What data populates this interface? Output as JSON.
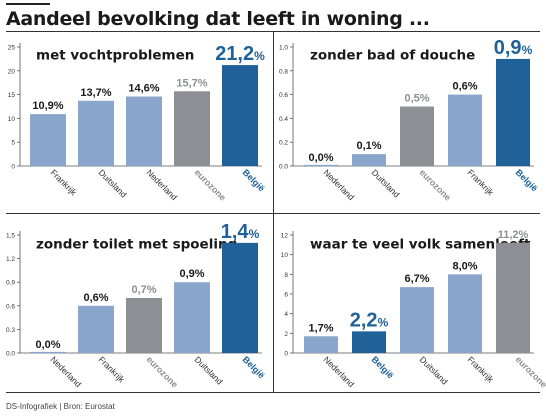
{
  "title": "Aandeel bevolking dat leeft in woning ...",
  "footer": "DS-Infografiek | Bron: Eurostat",
  "colors": {
    "light": "#8aa6cd",
    "gray": "#8d8f94",
    "highlight": "#1f6198",
    "text": "#1a1a1a"
  },
  "chart_data": [
    {
      "type": "bar",
      "title": "met vochtproblemen",
      "categories": [
        "Frankrijk",
        "Duitsland",
        "Nederland",
        "eurozone",
        "België"
      ],
      "values": [
        10.9,
        13.7,
        14.6,
        15.7,
        21.2
      ],
      "labels": [
        "10,9%",
        "13,7%",
        "14,6%",
        "15,7%",
        "21,2%"
      ],
      "styles": [
        "light",
        "light",
        "light",
        "gray",
        "highlight"
      ],
      "ylim": [
        0,
        25
      ],
      "yticks": [
        "0",
        "5",
        "10",
        "15",
        "20",
        "25"
      ],
      "ytick_values": [
        0,
        5,
        10,
        15,
        20,
        25
      ]
    },
    {
      "type": "bar",
      "title": "zonder bad of douche",
      "categories": [
        "Nederland",
        "Duitsland",
        "eurozone",
        "Frankrijk",
        "België"
      ],
      "values": [
        0.0,
        0.1,
        0.5,
        0.6,
        0.9
      ],
      "labels": [
        "0,0%",
        "0,1%",
        "0,5%",
        "0,6%",
        "0,9%"
      ],
      "styles": [
        "light",
        "light",
        "gray",
        "light",
        "highlight"
      ],
      "ylim": [
        0,
        1.0
      ],
      "yticks": [
        "0.0",
        "0.2",
        "0.4",
        "0.6",
        "0.8",
        "1,0"
      ],
      "ytick_values": [
        0,
        0.2,
        0.4,
        0.6,
        0.8,
        1.0
      ]
    },
    {
      "type": "bar",
      "title": "zonder toilet met spoeling",
      "categories": [
        "Nederland",
        "Frankrijk",
        "eurozone",
        "Duitsland",
        "België"
      ],
      "values": [
        0.0,
        0.6,
        0.7,
        0.9,
        1.4
      ],
      "labels": [
        "0,0%",
        "0,6%",
        "0,7%",
        "0,9%",
        "1,4%"
      ],
      "styles": [
        "light",
        "light",
        "gray",
        "light",
        "highlight"
      ],
      "ylim": [
        0,
        1.5
      ],
      "yticks": [
        "0.0",
        "0.3",
        "0.6",
        "0.9",
        "1.2",
        "1,5"
      ],
      "ytick_values": [
        0,
        0.3,
        0.6,
        0.9,
        1.2,
        1.5
      ]
    },
    {
      "type": "bar",
      "title": "waar te veel volk samenleeft",
      "categories": [
        "Nederland",
        "België",
        "Duitsland",
        "Frankrijk",
        "eurozone"
      ],
      "values": [
        1.7,
        2.2,
        6.7,
        8.0,
        11.2
      ],
      "labels": [
        "1,7%",
        "2,2%",
        "6,7%",
        "8,0%",
        "11,2%"
      ],
      "styles": [
        "light",
        "highlight",
        "light",
        "light",
        "gray"
      ],
      "ylim": [
        0,
        12
      ],
      "yticks": [
        "0",
        "2",
        "4",
        "6",
        "8",
        "10",
        "12"
      ],
      "ytick_values": [
        0,
        2,
        4,
        6,
        8,
        10,
        12
      ]
    }
  ]
}
